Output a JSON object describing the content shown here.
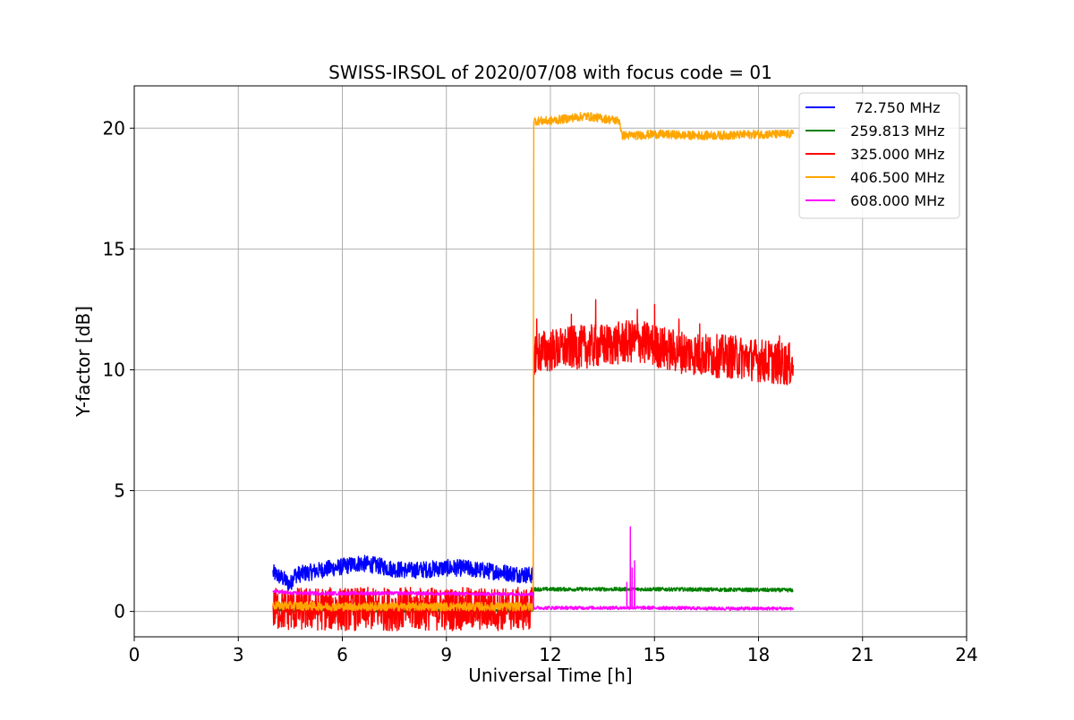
{
  "chart_data": {
    "type": "line",
    "title": "SWISS-IRSOL of 2020/07/08 with focus code = 01",
    "xlabel": "Universal Time [h]",
    "ylabel": "Y-factor [dB]",
    "xlim": [
      0,
      24
    ],
    "ylim": [
      -1.05,
      21.75
    ],
    "xticks": [
      0,
      3,
      6,
      9,
      12,
      15,
      18,
      21,
      24
    ],
    "xtick_labels": [
      "0",
      "3",
      "6",
      "9",
      "12",
      "15",
      "18",
      "21",
      "24"
    ],
    "yticks": [
      0,
      5,
      10,
      15,
      20
    ],
    "ytick_labels": [
      "0",
      "5",
      "10",
      "15",
      "20"
    ],
    "grid": true,
    "legend_position": "top-right",
    "series": [
      {
        "name": "  72.750 MHz",
        "color": "#0000ff",
        "noise": 0.35,
        "points": [
          [
            4.0,
            1.6
          ],
          [
            4.3,
            1.35
          ],
          [
            4.5,
            1.1
          ],
          [
            4.6,
            1.5
          ],
          [
            5.0,
            1.6
          ],
          [
            5.5,
            1.75
          ],
          [
            6.0,
            1.85
          ],
          [
            6.5,
            2.0
          ],
          [
            7.0,
            1.9
          ],
          [
            7.5,
            1.75
          ],
          [
            8.0,
            1.7
          ],
          [
            8.5,
            1.75
          ],
          [
            9.0,
            1.8
          ],
          [
            9.5,
            1.8
          ],
          [
            10.0,
            1.7
          ],
          [
            10.5,
            1.65
          ],
          [
            11.0,
            1.55
          ],
          [
            11.5,
            1.5
          ]
        ]
      },
      {
        "name": " 259.813 MHz",
        "color": "#008000",
        "noise": 0.08,
        "points": [
          [
            4.0,
            0.1
          ],
          [
            4.5,
            0.05
          ],
          [
            6.0,
            0.05
          ],
          [
            9.0,
            0.05
          ],
          [
            11.5,
            0.05
          ],
          [
            11.52,
            0.92
          ],
          [
            13.0,
            0.92
          ],
          [
            15.0,
            0.92
          ],
          [
            17.0,
            0.9
          ],
          [
            19.0,
            0.88
          ]
        ]
      },
      {
        "name": " 325.000 MHz",
        "color": "#ff0000",
        "noise": 0.9,
        "spikes": [
          [
            11.6,
            12.1
          ],
          [
            12.6,
            12.3
          ],
          [
            13.3,
            12.9
          ],
          [
            14.5,
            12.5
          ],
          [
            15.0,
            12.7
          ],
          [
            15.7,
            12.1
          ],
          [
            16.3,
            11.9
          ],
          [
            17.2,
            11.4
          ],
          [
            18.6,
            11.4
          ]
        ],
        "points": [
          [
            4.0,
            0.1
          ],
          [
            6.0,
            0.1
          ],
          [
            9.0,
            0.1
          ],
          [
            11.5,
            0.1
          ],
          [
            11.52,
            10.7
          ],
          [
            12.5,
            10.9
          ],
          [
            13.5,
            11.0
          ],
          [
            14.5,
            11.2
          ],
          [
            15.5,
            10.8
          ],
          [
            16.5,
            10.6
          ],
          [
            17.5,
            10.5
          ],
          [
            18.5,
            10.3
          ],
          [
            19.0,
            10.2
          ]
        ]
      },
      {
        "name": " 406.500 MHz",
        "color": "#ffa500",
        "noise": 0.18,
        "points": [
          [
            4.0,
            0.25
          ],
          [
            6.0,
            0.2
          ],
          [
            9.0,
            0.2
          ],
          [
            11.5,
            0.2
          ],
          [
            11.52,
            20.3
          ],
          [
            12.0,
            20.3
          ],
          [
            12.5,
            20.4
          ],
          [
            13.0,
            20.5
          ],
          [
            13.5,
            20.4
          ],
          [
            14.0,
            20.3
          ],
          [
            14.05,
            19.7
          ],
          [
            14.5,
            19.7
          ],
          [
            15.0,
            19.75
          ],
          [
            16.0,
            19.7
          ],
          [
            17.0,
            19.7
          ],
          [
            18.0,
            19.75
          ],
          [
            19.0,
            19.75
          ]
        ]
      },
      {
        "name": " 608.000 MHz",
        "color": "#ff00ff",
        "noise": 0.07,
        "spikes": [
          [
            14.2,
            1.2
          ],
          [
            14.3,
            3.5
          ],
          [
            14.35,
            1.8
          ],
          [
            14.42,
            2.1
          ]
        ],
        "points": [
          [
            4.0,
            0.85
          ],
          [
            4.5,
            0.75
          ],
          [
            6.0,
            0.75
          ],
          [
            8.0,
            0.75
          ],
          [
            10.0,
            0.72
          ],
          [
            11.5,
            0.72
          ],
          [
            11.52,
            0.15
          ],
          [
            13.0,
            0.15
          ],
          [
            15.0,
            0.15
          ],
          [
            17.0,
            0.12
          ],
          [
            19.0,
            0.12
          ]
        ]
      }
    ]
  }
}
